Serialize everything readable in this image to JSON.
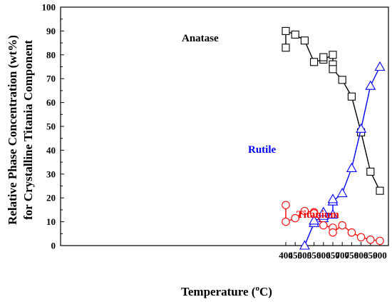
{
  "chart_data": {
    "type": "line",
    "xlabel_main": "Temperature (",
    "xlabel_sup": "o",
    "xlabel_end": "C)",
    "ylabel_line1": "Relative Phase Concentration (wt%)",
    "ylabel_line2": "for Crystalline Titania Component",
    "xlim": [
      400,
      900
    ],
    "ylim": [
      0,
      100
    ],
    "xticks": [
      400,
      450,
      500,
      550,
      600,
      650,
      700,
      750,
      800,
      850,
      900
    ],
    "yticks": [
      0,
      10,
      20,
      30,
      40,
      50,
      60,
      70,
      80,
      90,
      100
    ],
    "grid": false,
    "series": [
      {
        "name": "Anatase",
        "color": "#000000",
        "marker": "square",
        "points": [
          [
            400,
            83
          ],
          [
            400,
            90
          ],
          [
            450,
            88.5
          ],
          [
            500,
            86
          ],
          [
            550,
            77
          ],
          [
            600,
            78
          ],
          [
            600,
            79
          ],
          [
            650,
            80
          ],
          [
            650,
            76
          ],
          [
            650,
            74
          ],
          [
            700,
            69.5
          ],
          [
            750,
            62.5
          ],
          [
            800,
            47.5
          ],
          [
            850,
            31
          ],
          [
            900,
            23
          ]
        ],
        "path": [
          [
            400,
            83
          ],
          [
            400,
            90
          ],
          [
            450,
            88.5
          ],
          [
            500,
            86
          ],
          [
            550,
            77
          ],
          [
            600,
            78
          ],
          [
            650,
            80
          ],
          [
            650,
            74
          ],
          [
            700,
            69.5
          ],
          [
            750,
            62.5
          ],
          [
            800,
            47.5
          ],
          [
            850,
            31
          ],
          [
            900,
            23
          ]
        ]
      },
      {
        "name": "Rutile",
        "color": "#0000ff",
        "marker": "triangle",
        "points": [
          [
            500,
            0
          ],
          [
            550,
            9.5
          ],
          [
            550,
            10.5
          ],
          [
            600,
            11.5
          ],
          [
            600,
            12.5
          ],
          [
            600,
            14
          ],
          [
            650,
            13
          ],
          [
            650,
            18.5
          ],
          [
            650,
            19.5
          ],
          [
            700,
            22
          ],
          [
            750,
            32.5
          ],
          [
            800,
            49
          ],
          [
            850,
            67
          ],
          [
            900,
            75
          ]
        ],
        "path": [
          [
            500,
            0
          ],
          [
            550,
            9.5
          ],
          [
            550,
            10.5
          ],
          [
            600,
            11.5
          ],
          [
            600,
            14
          ],
          [
            650,
            13
          ],
          [
            650,
            18.5
          ],
          [
            700,
            22
          ],
          [
            750,
            32.5
          ],
          [
            800,
            49
          ],
          [
            850,
            67
          ],
          [
            900,
            75
          ]
        ]
      },
      {
        "name": "Titanium",
        "color": "#ff0000",
        "marker": "circle",
        "points": [
          [
            400,
            17
          ],
          [
            400,
            10
          ],
          [
            450,
            11.5
          ],
          [
            500,
            14.5
          ],
          [
            550,
            14
          ],
          [
            550,
            13.5
          ],
          [
            600,
            8.5
          ],
          [
            650,
            7.5
          ],
          [
            650,
            5.5
          ],
          [
            700,
            8.5
          ],
          [
            750,
            5.5
          ],
          [
            800,
            3.5
          ],
          [
            850,
            2.5
          ],
          [
            900,
            2
          ]
        ],
        "path": [
          [
            400,
            17
          ],
          [
            400,
            10
          ],
          [
            450,
            11.5
          ],
          [
            500,
            14.5
          ],
          [
            550,
            14
          ],
          [
            600,
            8.5
          ],
          [
            650,
            7.5
          ],
          [
            650,
            5.5
          ],
          [
            700,
            8.5
          ],
          [
            750,
            5.5
          ],
          [
            800,
            3.5
          ],
          [
            850,
            2.5
          ],
          [
            900,
            2
          ]
        ]
      }
    ]
  }
}
